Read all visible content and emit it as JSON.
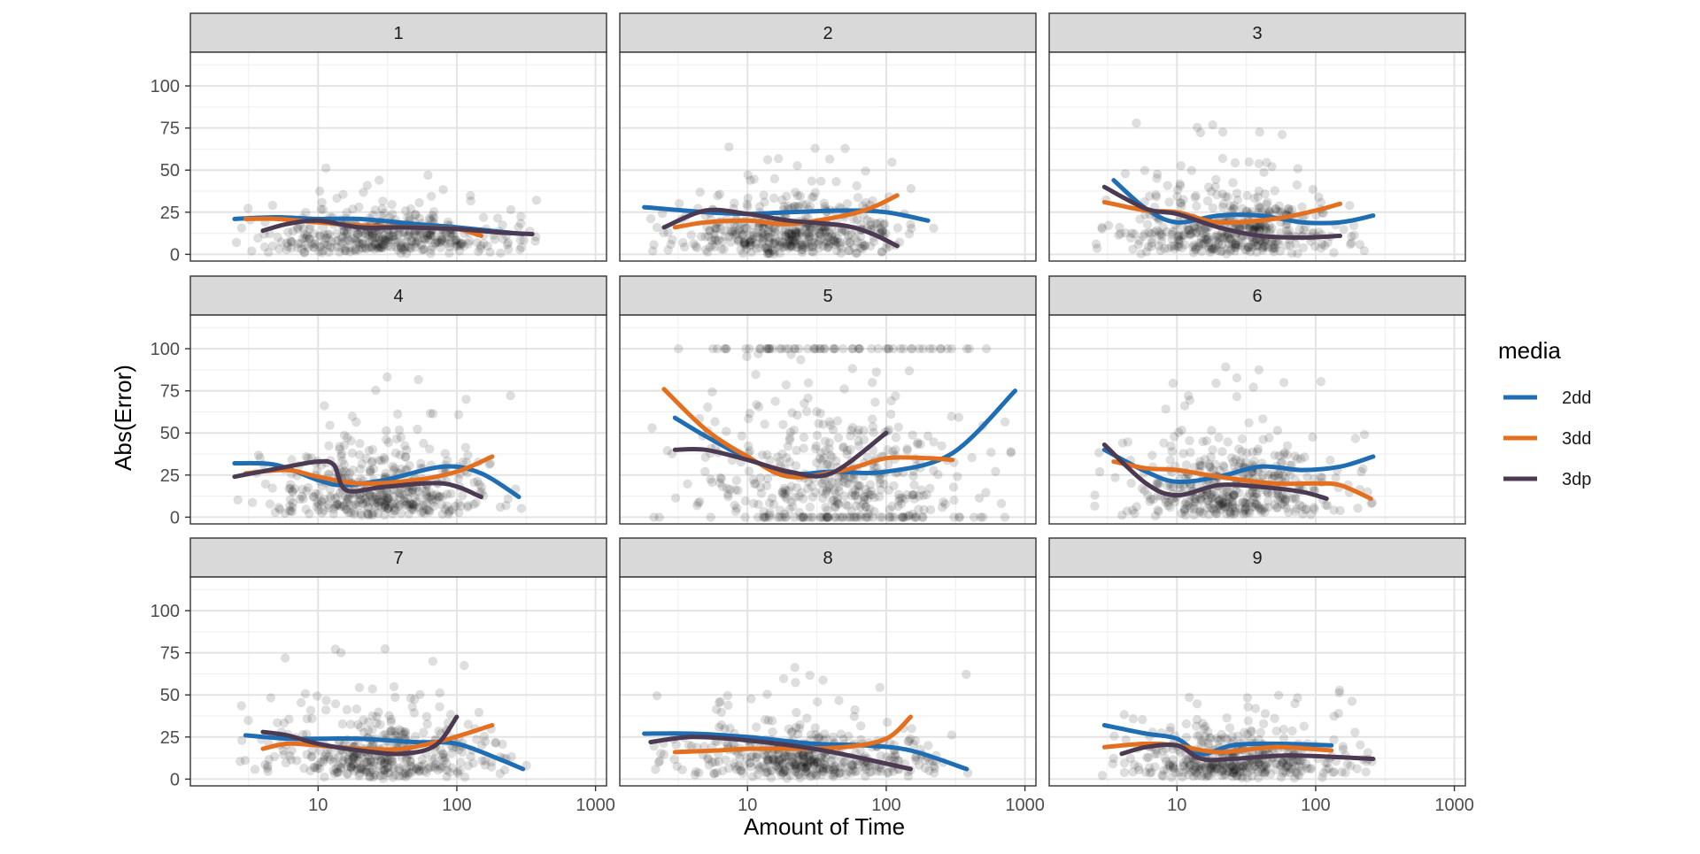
{
  "chart_data": {
    "type": "scatter",
    "facet_by": "panel",
    "panels": [
      "1",
      "2",
      "3",
      "4",
      "5",
      "6",
      "7",
      "8",
      "9"
    ],
    "xlabel": "Amount of Time",
    "ylabel": "Abs(Error)",
    "x_scale": "log10",
    "xlim": [
      1.2,
      1200
    ],
    "x_ticks": [
      10,
      100,
      1000
    ],
    "x_tick_labels": [
      "10",
      "100",
      "1000"
    ],
    "ylim": [
      -4,
      120
    ],
    "y_ticks": [
      0,
      25,
      50,
      75,
      100
    ],
    "y_tick_labels": [
      "0",
      "25",
      "50",
      "75",
      "100"
    ],
    "grid": true,
    "legend": {
      "title": "media",
      "placement": "right",
      "entries": [
        {
          "label": "2dd",
          "color": "#1f6eb3"
        },
        {
          "label": "3dd",
          "color": "#e46f1e"
        },
        {
          "label": "3dp",
          "color": "#4b3a52"
        }
      ]
    },
    "point_style": {
      "color": "#000000",
      "opacity": 0.13,
      "note": "raw observations, semi-transparent"
    },
    "point_params": [
      {
        "panel": "1",
        "n": 420,
        "xmin": 2.5,
        "xmax": 380,
        "y_mean": 17,
        "y_sd": 13,
        "y_max": 56
      },
      {
        "panel": "2",
        "n": 460,
        "xmin": 2.0,
        "xmax": 220,
        "y_mean": 20,
        "y_sd": 16,
        "y_max": 67
      },
      {
        "panel": "3",
        "n": 440,
        "xmin": 2.5,
        "xmax": 260,
        "y_mean": 20,
        "y_sd": 19,
        "y_max": 78
      },
      {
        "panel": "4",
        "n": 430,
        "xmin": 2.5,
        "xmax": 300,
        "y_mean": 18,
        "y_sd": 22,
        "y_max": 90
      },
      {
        "panel": "5",
        "n": 500,
        "xmin": 2.0,
        "xmax": 850,
        "y_mean": 30,
        "y_sd": 35,
        "y_max": 100
      },
      {
        "panel": "6",
        "n": 430,
        "xmin": 2.5,
        "xmax": 260,
        "y_mean": 18,
        "y_sd": 24,
        "y_max": 90
      },
      {
        "panel": "7",
        "n": 400,
        "xmin": 2.5,
        "xmax": 320,
        "y_mean": 20,
        "y_sd": 20,
        "y_max": 78
      },
      {
        "panel": "8",
        "n": 440,
        "xmin": 2.0,
        "xmax": 400,
        "y_mean": 18,
        "y_sd": 15,
        "y_max": 67
      },
      {
        "panel": "9",
        "n": 420,
        "xmin": 2.5,
        "xmax": 260,
        "y_mean": 16,
        "y_sd": 14,
        "y_max": 56
      }
    ],
    "series": [
      {
        "panel": "1",
        "name": "2dd",
        "x": [
          2.5,
          5,
          10,
          20,
          50,
          100,
          300
        ],
        "y": [
          21,
          22,
          21,
          21,
          18,
          16,
          12
        ]
      },
      {
        "panel": "1",
        "name": "3dd",
        "x": [
          3,
          5,
          10,
          20,
          50,
          100,
          150
        ],
        "y": [
          21,
          21,
          19,
          17,
          16,
          15,
          11
        ]
      },
      {
        "panel": "1",
        "name": "3dp",
        "x": [
          4,
          6,
          10,
          20,
          40,
          100,
          200,
          350
        ],
        "y": [
          14,
          18,
          20,
          16,
          16,
          15,
          13,
          12
        ]
      },
      {
        "panel": "2",
        "name": "2dd",
        "x": [
          1.8,
          5,
          10,
          20,
          50,
          100,
          200
        ],
        "y": [
          28,
          25,
          24,
          25,
          26,
          25,
          20
        ]
      },
      {
        "panel": "2",
        "name": "3dd",
        "x": [
          3,
          5,
          10,
          20,
          50,
          80,
          120
        ],
        "y": [
          16,
          19,
          20,
          18,
          23,
          28,
          35
        ]
      },
      {
        "panel": "2",
        "name": "3dp",
        "x": [
          2.5,
          5,
          10,
          20,
          50,
          80,
          120
        ],
        "y": [
          16,
          26,
          24,
          20,
          17,
          12,
          5
        ]
      },
      {
        "panel": "3",
        "name": "2dd",
        "x": [
          3.5,
          6,
          10,
          20,
          40,
          80,
          150,
          260
        ],
        "y": [
          44,
          27,
          19,
          23,
          23,
          19,
          19,
          23
        ]
      },
      {
        "panel": "3",
        "name": "3dd",
        "x": [
          3,
          6,
          10,
          20,
          50,
          100,
          150
        ],
        "y": [
          31,
          26,
          25,
          19,
          21,
          26,
          30
        ]
      },
      {
        "panel": "3",
        "name": "3dp",
        "x": [
          3,
          6,
          10,
          20,
          40,
          80,
          150
        ],
        "y": [
          40,
          27,
          24,
          16,
          11,
          10,
          11
        ]
      },
      {
        "panel": "4",
        "name": "2dd",
        "x": [
          2.5,
          5,
          10,
          15,
          30,
          80,
          150,
          280
        ],
        "y": [
          32,
          31,
          22,
          19,
          22,
          30,
          26,
          12
        ]
      },
      {
        "panel": "4",
        "name": "3dd",
        "x": [
          3,
          6,
          10,
          20,
          50,
          100,
          180
        ],
        "y": [
          26,
          28,
          24,
          20,
          22,
          27,
          36
        ]
      },
      {
        "panel": "4",
        "name": "3dp",
        "x": [
          2.5,
          6,
          10,
          13,
          16,
          30,
          80,
          150
        ],
        "y": [
          24,
          30,
          33,
          31,
          16,
          18,
          20,
          12
        ]
      },
      {
        "panel": "5",
        "name": "2dd",
        "x": [
          3,
          5,
          10,
          20,
          40,
          100,
          300,
          850
        ],
        "y": [
          59,
          48,
          35,
          26,
          27,
          27,
          38,
          75
        ]
      },
      {
        "panel": "5",
        "name": "3dd",
        "x": [
          2.5,
          5,
          10,
          20,
          50,
          100,
          200,
          300
        ],
        "y": [
          76,
          52,
          36,
          24,
          28,
          35,
          35,
          34
        ]
      },
      {
        "panel": "5",
        "name": "3dp",
        "x": [
          3,
          5,
          10,
          20,
          40,
          100
        ],
        "y": [
          40,
          40,
          34,
          27,
          26,
          50
        ]
      },
      {
        "panel": "6",
        "name": "2dd",
        "x": [
          3,
          6,
          10,
          20,
          40,
          80,
          150,
          260
        ],
        "y": [
          40,
          27,
          21,
          24,
          30,
          28,
          30,
          36
        ]
      },
      {
        "panel": "6",
        "name": "3dd",
        "x": [
          3.5,
          6,
          10,
          20,
          50,
          100,
          150,
          250
        ],
        "y": [
          33,
          29,
          28,
          24,
          20,
          20,
          19,
          11
        ]
      },
      {
        "panel": "6",
        "name": "3dp",
        "x": [
          3,
          6,
          10,
          20,
          40,
          80,
          120
        ],
        "y": [
          43,
          20,
          13,
          19,
          18,
          15,
          11
        ]
      },
      {
        "panel": "7",
        "name": "2dd",
        "x": [
          3,
          6,
          10,
          20,
          50,
          100,
          200,
          300
        ],
        "y": [
          26,
          24,
          24,
          24,
          22,
          21,
          12,
          6
        ]
      },
      {
        "panel": "7",
        "name": "3dd",
        "x": [
          4,
          6,
          10,
          20,
          40,
          80,
          180
        ],
        "y": [
          18,
          21,
          20,
          18,
          18,
          23,
          32
        ]
      },
      {
        "panel": "7",
        "name": "3dp",
        "x": [
          4,
          6,
          10,
          20,
          40,
          70,
          100
        ],
        "y": [
          28,
          26,
          21,
          17,
          15,
          20,
          37
        ]
      },
      {
        "panel": "8",
        "name": "2dd",
        "x": [
          1.8,
          4,
          10,
          30,
          70,
          150,
          380
        ],
        "y": [
          27,
          27,
          25,
          21,
          20,
          17,
          6
        ]
      },
      {
        "panel": "8",
        "name": "3dd",
        "x": [
          3,
          6,
          10,
          20,
          50,
          100,
          150
        ],
        "y": [
          16,
          17,
          18,
          18,
          19,
          24,
          37
        ]
      },
      {
        "panel": "8",
        "name": "3dp",
        "x": [
          2,
          4,
          10,
          30,
          70,
          150
        ],
        "y": [
          22,
          25,
          23,
          18,
          12,
          6
        ]
      },
      {
        "panel": "9",
        "name": "2dd",
        "x": [
          3,
          6,
          10,
          15,
          25,
          50,
          130
        ],
        "y": [
          32,
          27,
          24,
          15,
          20,
          21,
          20
        ]
      },
      {
        "panel": "9",
        "name": "3dd",
        "x": [
          3,
          6,
          10,
          20,
          50,
          130
        ],
        "y": [
          19,
          21,
          20,
          16,
          19,
          17
        ]
      },
      {
        "panel": "9",
        "name": "3dp",
        "x": [
          4,
          6,
          10,
          15,
          25,
          60,
          150,
          260
        ],
        "y": [
          15,
          19,
          20,
          12,
          12,
          14,
          13,
          12
        ]
      }
    ]
  }
}
